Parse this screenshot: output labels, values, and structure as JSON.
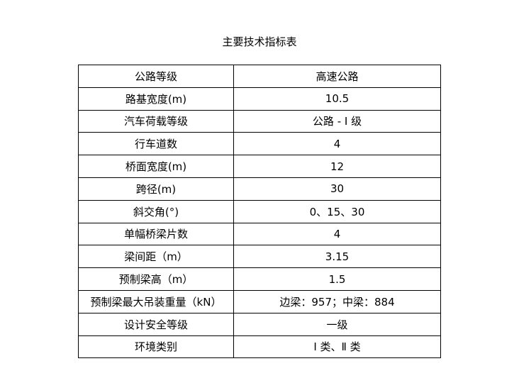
{
  "title": "主要技术指标表",
  "rows": [
    [
      "公路等级",
      "高速公路"
    ],
    [
      "路基宽度(m)",
      "10.5"
    ],
    [
      "汽车荷载等级",
      "公路 - Ⅰ 级"
    ],
    [
      "行车道数",
      "4"
    ],
    [
      "桥面宽度(m)",
      "12"
    ],
    [
      "跨径(m)",
      "30"
    ],
    [
      "斜交角(°)",
      "0、15、30"
    ],
    [
      "单幅桥梁片数",
      "4"
    ],
    [
      "梁间距（m）",
      "3.15"
    ],
    [
      "预制梁高（m）",
      "1.5"
    ],
    [
      "预制梁最大吊装重量（kN）",
      "边梁：957；中梁：884"
    ],
    [
      "设计安全等级",
      "一级"
    ],
    [
      "环境类别",
      "Ⅰ 类、Ⅱ 类"
    ]
  ]
}
